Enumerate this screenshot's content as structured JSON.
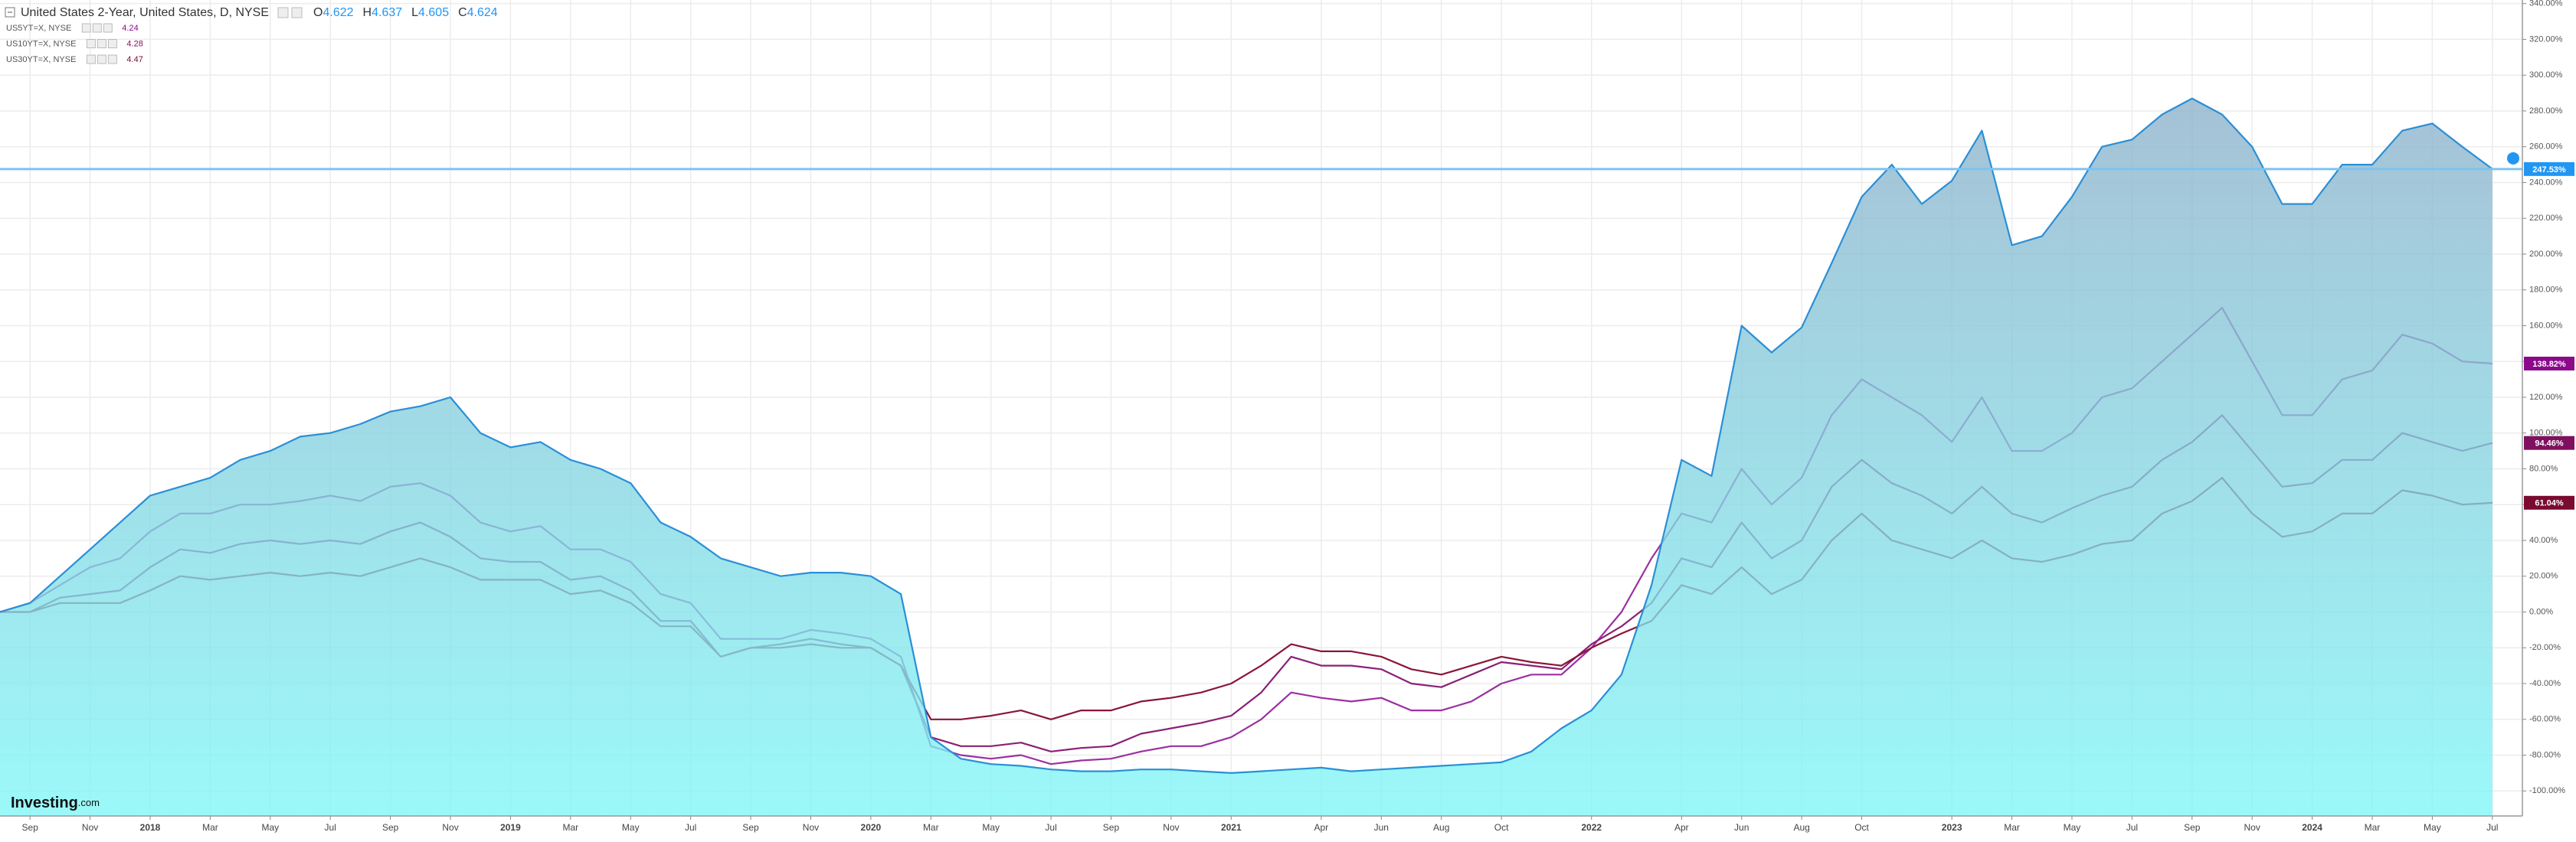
{
  "chart_data": {
    "type": "line",
    "title": "United States 2-Year, United States, D, NYSE",
    "ohlc": [
      {
        "label": "O",
        "value": 4.622
      },
      {
        "label": "H",
        "value": 4.637
      },
      {
        "label": "L",
        "value": 4.605
      },
      {
        "label": "C",
        "value": 4.624
      }
    ],
    "watermark": [
      "Investing",
      ".com"
    ],
    "grid": true,
    "xlim": [
      "2017-08",
      "2024-08"
    ],
    "ylim": [
      -114,
      342
    ],
    "xticks": [
      {
        "value": "2017-09",
        "label": "Sep"
      },
      {
        "value": "2017-11",
        "label": "Nov"
      },
      {
        "value": "2018-01",
        "label": "2018"
      },
      {
        "value": "2018-03",
        "label": "Mar"
      },
      {
        "value": "2018-05",
        "label": "May"
      },
      {
        "value": "2018-07",
        "label": "Jul"
      },
      {
        "value": "2018-09",
        "label": "Sep"
      },
      {
        "value": "2018-11",
        "label": "Nov"
      },
      {
        "value": "2019-01",
        "label": "2019"
      },
      {
        "value": "2019-03",
        "label": "Mar"
      },
      {
        "value": "2019-05",
        "label": "May"
      },
      {
        "value": "2019-07",
        "label": "Jul"
      },
      {
        "value": "2019-09",
        "label": "Sep"
      },
      {
        "value": "2019-11",
        "label": "Nov"
      },
      {
        "value": "2020-01",
        "label": "2020"
      },
      {
        "value": "2020-03",
        "label": "Mar"
      },
      {
        "value": "2020-05",
        "label": "May"
      },
      {
        "value": "2020-07",
        "label": "Jul"
      },
      {
        "value": "2020-09",
        "label": "Sep"
      },
      {
        "value": "2020-11",
        "label": "Nov"
      },
      {
        "value": "2021-01",
        "label": "2021"
      },
      {
        "value": "2021-04",
        "label": "Apr"
      },
      {
        "value": "2021-06",
        "label": "Jun"
      },
      {
        "value": "2021-08",
        "label": "Aug"
      },
      {
        "value": "2021-10",
        "label": "Oct"
      },
      {
        "value": "2022-01",
        "label": "2022"
      },
      {
        "value": "2022-04",
        "label": "Apr"
      },
      {
        "value": "2022-06",
        "label": "Jun"
      },
      {
        "value": "2022-08",
        "label": "Aug"
      },
      {
        "value": "2022-10",
        "label": "Oct"
      },
      {
        "value": "2023-01",
        "label": "2023"
      },
      {
        "value": "2023-03",
        "label": "Mar"
      },
      {
        "value": "2023-05",
        "label": "May"
      },
      {
        "value": "2023-07",
        "label": "Jul"
      },
      {
        "value": "2023-09",
        "label": "Sep"
      },
      {
        "value": "2023-11",
        "label": "Nov"
      },
      {
        "value": "2024-01",
        "label": "2024"
      },
      {
        "value": "2024-03",
        "label": "Mar"
      },
      {
        "value": "2024-05",
        "label": "May"
      },
      {
        "value": "2024-07",
        "label": "Jul"
      }
    ],
    "yticks": [
      {
        "value": 340,
        "label": "340.00%"
      },
      {
        "value": 320,
        "label": "320.00%"
      },
      {
        "value": 300,
        "label": "300.00%"
      },
      {
        "value": 280,
        "label": "280.00%"
      },
      {
        "value": 260,
        "label": "260.00%"
      },
      {
        "value": 240,
        "label": "240.00%"
      },
      {
        "value": 220,
        "label": "220.00%"
      },
      {
        "value": 200,
        "label": "200.00%"
      },
      {
        "value": 180,
        "label": "180.00%"
      },
      {
        "value": 160,
        "label": "160.00%"
      },
      {
        "value": 140,
        "label": "140.00%"
      },
      {
        "value": 120,
        "label": "120.00%"
      },
      {
        "value": 100,
        "label": "100.00%"
      },
      {
        "value": 80,
        "label": "80.00%"
      },
      {
        "value": 60,
        "label": "60.00%"
      },
      {
        "value": 40,
        "label": "40.00%"
      },
      {
        "value": 20,
        "label": "20.00%"
      },
      {
        "value": 0,
        "label": "0.00%"
      },
      {
        "value": -20,
        "label": "-20.00%"
      },
      {
        "value": -40,
        "label": "-40.00%"
      },
      {
        "value": -60,
        "label": "-60.00%"
      },
      {
        "value": -80,
        "label": "-80.00%"
      },
      {
        "value": -100,
        "label": "-100.00%"
      }
    ],
    "x": [
      "2017-08",
      "2017-09",
      "2017-10",
      "2017-11",
      "2017-12",
      "2018-01",
      "2018-02",
      "2018-03",
      "2018-04",
      "2018-05",
      "2018-06",
      "2018-07",
      "2018-08",
      "2018-09",
      "2018-10",
      "2018-11",
      "2018-12",
      "2019-01",
      "2019-02",
      "2019-03",
      "2019-04",
      "2019-05",
      "2019-06",
      "2019-07",
      "2019-08",
      "2019-09",
      "2019-10",
      "2019-11",
      "2019-12",
      "2020-01",
      "2020-02",
      "2020-03",
      "2020-04",
      "2020-05",
      "2020-06",
      "2020-07",
      "2020-08",
      "2020-09",
      "2020-10",
      "2020-11",
      "2020-12",
      "2021-01",
      "2021-02",
      "2021-03",
      "2021-04",
      "2021-05",
      "2021-06",
      "2021-07",
      "2021-08",
      "2021-09",
      "2021-10",
      "2021-11",
      "2021-12",
      "2022-01",
      "2022-02",
      "2022-03",
      "2022-04",
      "2022-05",
      "2022-06",
      "2022-07",
      "2022-08",
      "2022-09",
      "2022-10",
      "2022-11",
      "2022-12",
      "2023-01",
      "2023-02",
      "2023-03",
      "2023-04",
      "2023-05",
      "2023-06",
      "2023-07",
      "2023-08",
      "2023-09",
      "2023-10",
      "2023-11",
      "2023-12",
      "2024-01",
      "2024-02",
      "2024-03",
      "2024-04",
      "2024-05",
      "2024-06",
      "2024-07"
    ],
    "series": [
      {
        "name": "United States 2-Year, United States, D, NYSE",
        "color": "#2a8fd6",
        "area": true,
        "end_label": "247.53%",
        "badge_color": "#2196f3",
        "values": [
          0,
          5,
          20,
          35,
          50,
          65,
          70,
          75,
          85,
          90,
          98,
          100,
          105,
          112,
          115,
          120,
          100,
          92,
          95,
          85,
          80,
          72,
          50,
          42,
          30,
          25,
          20,
          22,
          22,
          20,
          10,
          -70,
          -82,
          -85,
          -86,
          -88,
          -89,
          -89,
          -88,
          -88,
          -89,
          -90,
          -89,
          -88,
          -87,
          -89,
          -88,
          -87,
          -86,
          -85,
          -84,
          -78,
          -65,
          -55,
          -35,
          15,
          85,
          76,
          160,
          145,
          159,
          195,
          232,
          250,
          228,
          241,
          269,
          205,
          210,
          232,
          260,
          264,
          278,
          287,
          278,
          260,
          228,
          228,
          250,
          250,
          269,
          273,
          260,
          247.53
        ]
      },
      {
        "name": "US5YT=X, NYSE",
        "color": "#9b30a0",
        "last": 4.24,
        "end_label": "138.82%",
        "badge_color": "#8b0a8b",
        "values": [
          0,
          5,
          15,
          25,
          30,
          45,
          55,
          55,
          60,
          60,
          62,
          65,
          62,
          70,
          72,
          65,
          50,
          45,
          48,
          35,
          35,
          28,
          10,
          5,
          -15,
          -15,
          -15,
          -10,
          -12,
          -15,
          -25,
          -75,
          -80,
          -82,
          -80,
          -85,
          -83,
          -82,
          -78,
          -75,
          -75,
          -70,
          -60,
          -45,
          -48,
          -50,
          -48,
          -55,
          -55,
          -50,
          -40,
          -35,
          -35,
          -20,
          0,
          30,
          55,
          50,
          80,
          60,
          75,
          110,
          130,
          120,
          110,
          95,
          120,
          90,
          90,
          100,
          120,
          125,
          140,
          155,
          170,
          140,
          110,
          110,
          130,
          135,
          155,
          150,
          140,
          138.82
        ]
      },
      {
        "name": "US10YT=X, NYSE",
        "color": "#8a2077",
        "last": 4.28,
        "end_label": "94.46%",
        "badge_color": "#7f1060",
        "values": [
          0,
          0,
          8,
          10,
          12,
          25,
          35,
          33,
          38,
          40,
          38,
          40,
          38,
          45,
          50,
          42,
          30,
          28,
          28,
          18,
          20,
          12,
          -5,
          -5,
          -25,
          -20,
          -18,
          -15,
          -18,
          -20,
          -30,
          -70,
          -75,
          -75,
          -73,
          -78,
          -76,
          -75,
          -68,
          -65,
          -62,
          -58,
          -45,
          -25,
          -30,
          -30,
          -32,
          -40,
          -42,
          -35,
          -28,
          -30,
          -32,
          -18,
          -8,
          5,
          30,
          25,
          50,
          30,
          40,
          70,
          85,
          72,
          65,
          55,
          70,
          55,
          50,
          58,
          65,
          70,
          85,
          95,
          110,
          90,
          70,
          72,
          85,
          85,
          100,
          95,
          90,
          94.46
        ]
      },
      {
        "name": "US30YT=X, NYSE",
        "color": "#8a1538",
        "last": 4.47,
        "end_label": "61.04%",
        "badge_color": "#7a0a30",
        "values": [
          0,
          0,
          5,
          5,
          5,
          12,
          20,
          18,
          20,
          22,
          20,
          22,
          20,
          25,
          30,
          25,
          18,
          18,
          18,
          10,
          12,
          5,
          -8,
          -8,
          -25,
          -20,
          -20,
          -18,
          -20,
          -20,
          -30,
          -60,
          -60,
          -58,
          -55,
          -60,
          -55,
          -55,
          -50,
          -48,
          -45,
          -40,
          -30,
          -18,
          -22,
          -22,
          -25,
          -32,
          -35,
          -30,
          -25,
          -28,
          -30,
          -20,
          -12,
          -5,
          15,
          10,
          25,
          10,
          18,
          40,
          55,
          40,
          35,
          30,
          40,
          30,
          28,
          32,
          38,
          40,
          55,
          62,
          75,
          55,
          42,
          45,
          55,
          55,
          68,
          65,
          60,
          61.04
        ]
      }
    ]
  }
}
